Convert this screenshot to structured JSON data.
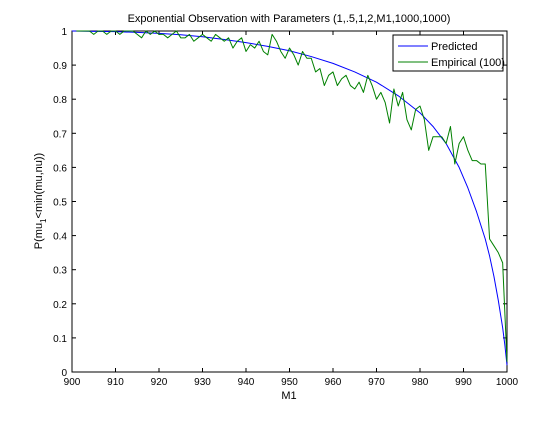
{
  "chart_data": {
    "type": "line",
    "title": "Exponential Observation with Parameters (1,.5,1,2,M1,1000,1000)",
    "xlabel": "M1",
    "ylabel": "P(mu",
    "ylabel_sub": "1",
    "ylabel_rest": "<min(mu,nu))",
    "xlim": [
      900,
      1000
    ],
    "ylim": [
      0,
      1
    ],
    "x_ticks": [
      900,
      910,
      920,
      930,
      940,
      950,
      960,
      970,
      980,
      990,
      1000
    ],
    "y_ticks": [
      0,
      0.1,
      0.2,
      0.3,
      0.4,
      0.5,
      0.6,
      0.7,
      0.8,
      0.9,
      1
    ],
    "x_tick_labels": [
      "900",
      "910",
      "920",
      "930",
      "940",
      "950",
      "960",
      "970",
      "980",
      "990",
      "1000"
    ],
    "y_tick_labels": [
      "0",
      "0.1",
      "0.2",
      "0.3",
      "0.4",
      "0.5",
      "0.6",
      "0.7",
      "0.8",
      "0.9",
      "1"
    ],
    "grid": false,
    "legend_position": "top-right",
    "series": [
      {
        "name": "Predicted",
        "color": "#0000ff",
        "x": [
          900,
          905,
          910,
          915,
          920,
          925,
          930,
          935,
          940,
          945,
          950,
          955,
          960,
          965,
          970,
          975,
          980,
          983,
          986,
          989,
          991,
          993,
          995,
          996,
          997,
          998,
          999,
          999.5,
          1000
        ],
        "y": [
          1.0,
          0.999,
          0.998,
          0.996,
          0.993,
          0.989,
          0.983,
          0.975,
          0.966,
          0.955,
          0.942,
          0.925,
          0.905,
          0.88,
          0.85,
          0.81,
          0.76,
          0.72,
          0.67,
          0.6,
          0.54,
          0.47,
          0.39,
          0.34,
          0.28,
          0.21,
          0.13,
          0.08,
          0.02
        ]
      },
      {
        "name": "Empirical (100)",
        "color": "#008000",
        "x": [
          901,
          902,
          903,
          904,
          905,
          906,
          907,
          908,
          909,
          910,
          911,
          912,
          913,
          914,
          915,
          916,
          917,
          918,
          919,
          920,
          921,
          922,
          923,
          924,
          925,
          926,
          927,
          928,
          929,
          930,
          931,
          932,
          933,
          934,
          935,
          936,
          937,
          938,
          939,
          940,
          941,
          942,
          943,
          944,
          945,
          946,
          947,
          948,
          949,
          950,
          951,
          952,
          953,
          954,
          955,
          956,
          957,
          958,
          959,
          960,
          961,
          962,
          963,
          964,
          965,
          966,
          967,
          968,
          969,
          970,
          971,
          972,
          973,
          974,
          975,
          976,
          977,
          978,
          979,
          980,
          981,
          982,
          983,
          984,
          985,
          986,
          987,
          988,
          989,
          990,
          991,
          992,
          993,
          994,
          995,
          996,
          997,
          998,
          999,
          1000
        ],
        "y": [
          1.0,
          1.0,
          1.0,
          1.0,
          0.99,
          1.0,
          1.0,
          0.99,
          1.0,
          1.0,
          0.99,
          1.0,
          1.0,
          1.0,
          0.99,
          0.98,
          1.0,
          0.99,
          1.0,
          0.99,
          0.99,
          0.98,
          0.99,
          1.0,
          0.98,
          0.98,
          0.99,
          0.97,
          0.98,
          0.99,
          0.98,
          0.97,
          0.99,
          0.98,
          0.97,
          0.98,
          0.95,
          0.97,
          0.98,
          0.94,
          0.96,
          0.95,
          0.97,
          0.94,
          0.93,
          0.99,
          0.97,
          0.94,
          0.92,
          0.95,
          0.93,
          0.9,
          0.94,
          0.92,
          0.92,
          0.88,
          0.89,
          0.84,
          0.87,
          0.88,
          0.84,
          0.86,
          0.87,
          0.84,
          0.83,
          0.85,
          0.82,
          0.87,
          0.84,
          0.8,
          0.82,
          0.79,
          0.73,
          0.83,
          0.78,
          0.82,
          0.74,
          0.71,
          0.77,
          0.78,
          0.74,
          0.65,
          0.69,
          0.69,
          0.69,
          0.67,
          0.72,
          0.61,
          0.67,
          0.69,
          0.65,
          0.62,
          0.62,
          0.61,
          0.61,
          0.39,
          0.37,
          0.35,
          0.32,
          0.03
        ]
      }
    ]
  }
}
